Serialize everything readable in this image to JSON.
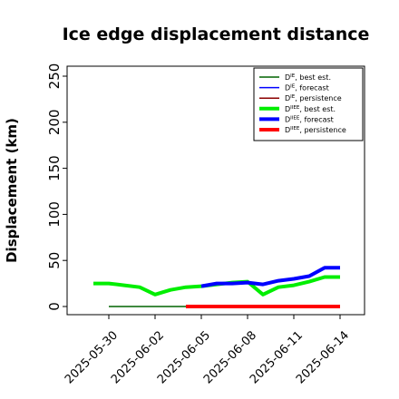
{
  "chart_data": {
    "type": "line",
    "title": "Ice edge displacement distance",
    "xlabel": "",
    "ylabel": "Displacement (km)",
    "ylim": [
      0,
      260
    ],
    "yticks": [
      0,
      50,
      100,
      150,
      200,
      250
    ],
    "xticks": [
      "2025-05-30",
      "2025-06-02",
      "2025-06-05",
      "2025-06-08",
      "2025-06-11",
      "2025-06-14"
    ],
    "highlight_xtick": "2025-06-05",
    "highlight_color": "#1a8a1a",
    "legend_position": "top-right",
    "grid": false,
    "series": [
      {
        "name": "D^IE, best est.",
        "sub": "IE",
        "suffix": ", best est.",
        "color": "#006400",
        "width": "thin",
        "x": [
          "2025-05-30",
          "2025-05-31",
          "2025-06-01",
          "2025-06-02",
          "2025-06-03",
          "2025-06-04"
        ],
        "y": [
          0,
          0,
          0,
          0,
          0,
          0
        ]
      },
      {
        "name": "D^IE, forecast",
        "sub": "IE",
        "suffix": ", forecast",
        "color": "#0000ff",
        "width": "thin",
        "x": [],
        "y": []
      },
      {
        "name": "D^IE, persistence",
        "sub": "IE",
        "suffix": ", persistence",
        "color": "#8b0000",
        "width": "thin",
        "x": [
          "2025-06-04",
          "2025-06-05",
          "2025-06-06",
          "2025-06-07",
          "2025-06-08",
          "2025-06-09",
          "2025-06-10",
          "2025-06-11",
          "2025-06-12",
          "2025-06-13",
          "2025-06-14"
        ],
        "y": [
          0,
          0,
          0,
          0,
          0,
          0,
          0,
          0,
          0,
          0,
          0
        ]
      },
      {
        "name": "D^IIEE, best est.",
        "sub": "IIEE",
        "suffix": ", best est.",
        "color": "#00ee00",
        "width": "thick",
        "x": [
          "2025-05-29",
          "2025-05-30",
          "2025-05-31",
          "2025-06-01",
          "2025-06-02",
          "2025-06-03",
          "2025-06-04",
          "2025-06-05",
          "2025-06-06",
          "2025-06-07",
          "2025-06-08",
          "2025-06-09",
          "2025-06-10",
          "2025-06-11",
          "2025-06-12",
          "2025-06-13",
          "2025-06-14"
        ],
        "y": [
          25,
          25,
          23,
          21,
          13,
          18,
          21,
          22,
          24,
          26,
          27,
          13,
          21,
          23,
          27,
          32,
          32
        ]
      },
      {
        "name": "D^IIEE, forecast",
        "sub": "IIEE",
        "suffix": ", forecast",
        "color": "#0000ff",
        "width": "thick",
        "x": [
          "2025-06-05",
          "2025-06-06",
          "2025-06-07",
          "2025-06-08",
          "2025-06-09",
          "2025-06-10",
          "2025-06-11",
          "2025-06-12",
          "2025-06-13",
          "2025-06-14"
        ],
        "y": [
          22,
          25,
          25,
          26,
          24,
          28,
          30,
          33,
          42,
          42
        ]
      },
      {
        "name": "D^IIEE, persistence",
        "sub": "IIEE",
        "suffix": ", persistence",
        "color": "#ff0000",
        "width": "thick",
        "x": [
          "2025-06-04",
          "2025-06-05",
          "2025-06-06",
          "2025-06-07",
          "2025-06-08",
          "2025-06-09",
          "2025-06-10",
          "2025-06-11",
          "2025-06-12",
          "2025-06-13",
          "2025-06-14"
        ],
        "y": [
          0,
          0,
          0,
          0,
          0,
          0,
          0,
          0,
          0,
          0,
          0
        ]
      }
    ]
  }
}
